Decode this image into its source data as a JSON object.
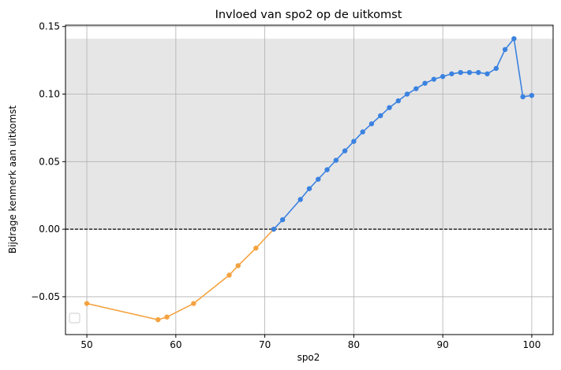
{
  "chart_data": {
    "type": "line",
    "title": "Invloed van spo2 op de uitkomst",
    "xlabel": "spo2",
    "ylabel": "Bijdrage kenmerk aan uitkomst",
    "xlim": [
      47.6,
      102.4
    ],
    "ylim": [
      -0.078,
      0.151
    ],
    "x_ticks": [
      50,
      60,
      70,
      80,
      90,
      100
    ],
    "y_ticks": [
      -0.05,
      0.0,
      0.05,
      0.1,
      0.15
    ],
    "x_tick_labels": [
      "50",
      "60",
      "70",
      "80",
      "90",
      "100"
    ],
    "y_tick_labels": [
      "−0.05",
      "0.00",
      "0.05",
      "0.10",
      "0.15"
    ],
    "grid": true,
    "legend_placement": "lower left",
    "legend_entries": [],
    "shaded_band": {
      "y_from": 0.0,
      "y_to": 0.141,
      "color": "#e6e6e6"
    },
    "reference_line": {
      "y": 0.0,
      "style": "dashed",
      "color": "#000000"
    },
    "series": [
      {
        "color": "#f4a340",
        "x": [
          50,
          58,
          59,
          62,
          66,
          67,
          69,
          71
        ],
        "y": [
          -0.055,
          -0.067,
          -0.065,
          -0.055,
          -0.034,
          -0.027,
          -0.014,
          0.0
        ]
      },
      {
        "color": "#3b82e0",
        "x": [
          71,
          72,
          74,
          75,
          76,
          77,
          78,
          79,
          80,
          81,
          82,
          83,
          84,
          85,
          86,
          87,
          88,
          89,
          90,
          91,
          92,
          93,
          94,
          95,
          96,
          97,
          98,
          99,
          100
        ],
        "y": [
          0.0,
          0.007,
          0.022,
          0.03,
          0.037,
          0.044,
          0.051,
          0.058,
          0.065,
          0.072,
          0.078,
          0.084,
          0.09,
          0.095,
          0.1,
          0.104,
          0.108,
          0.111,
          0.113,
          0.115,
          0.116,
          0.116,
          0.116,
          0.115,
          0.119,
          0.133,
          0.141,
          0.098,
          0.099
        ]
      }
    ]
  }
}
